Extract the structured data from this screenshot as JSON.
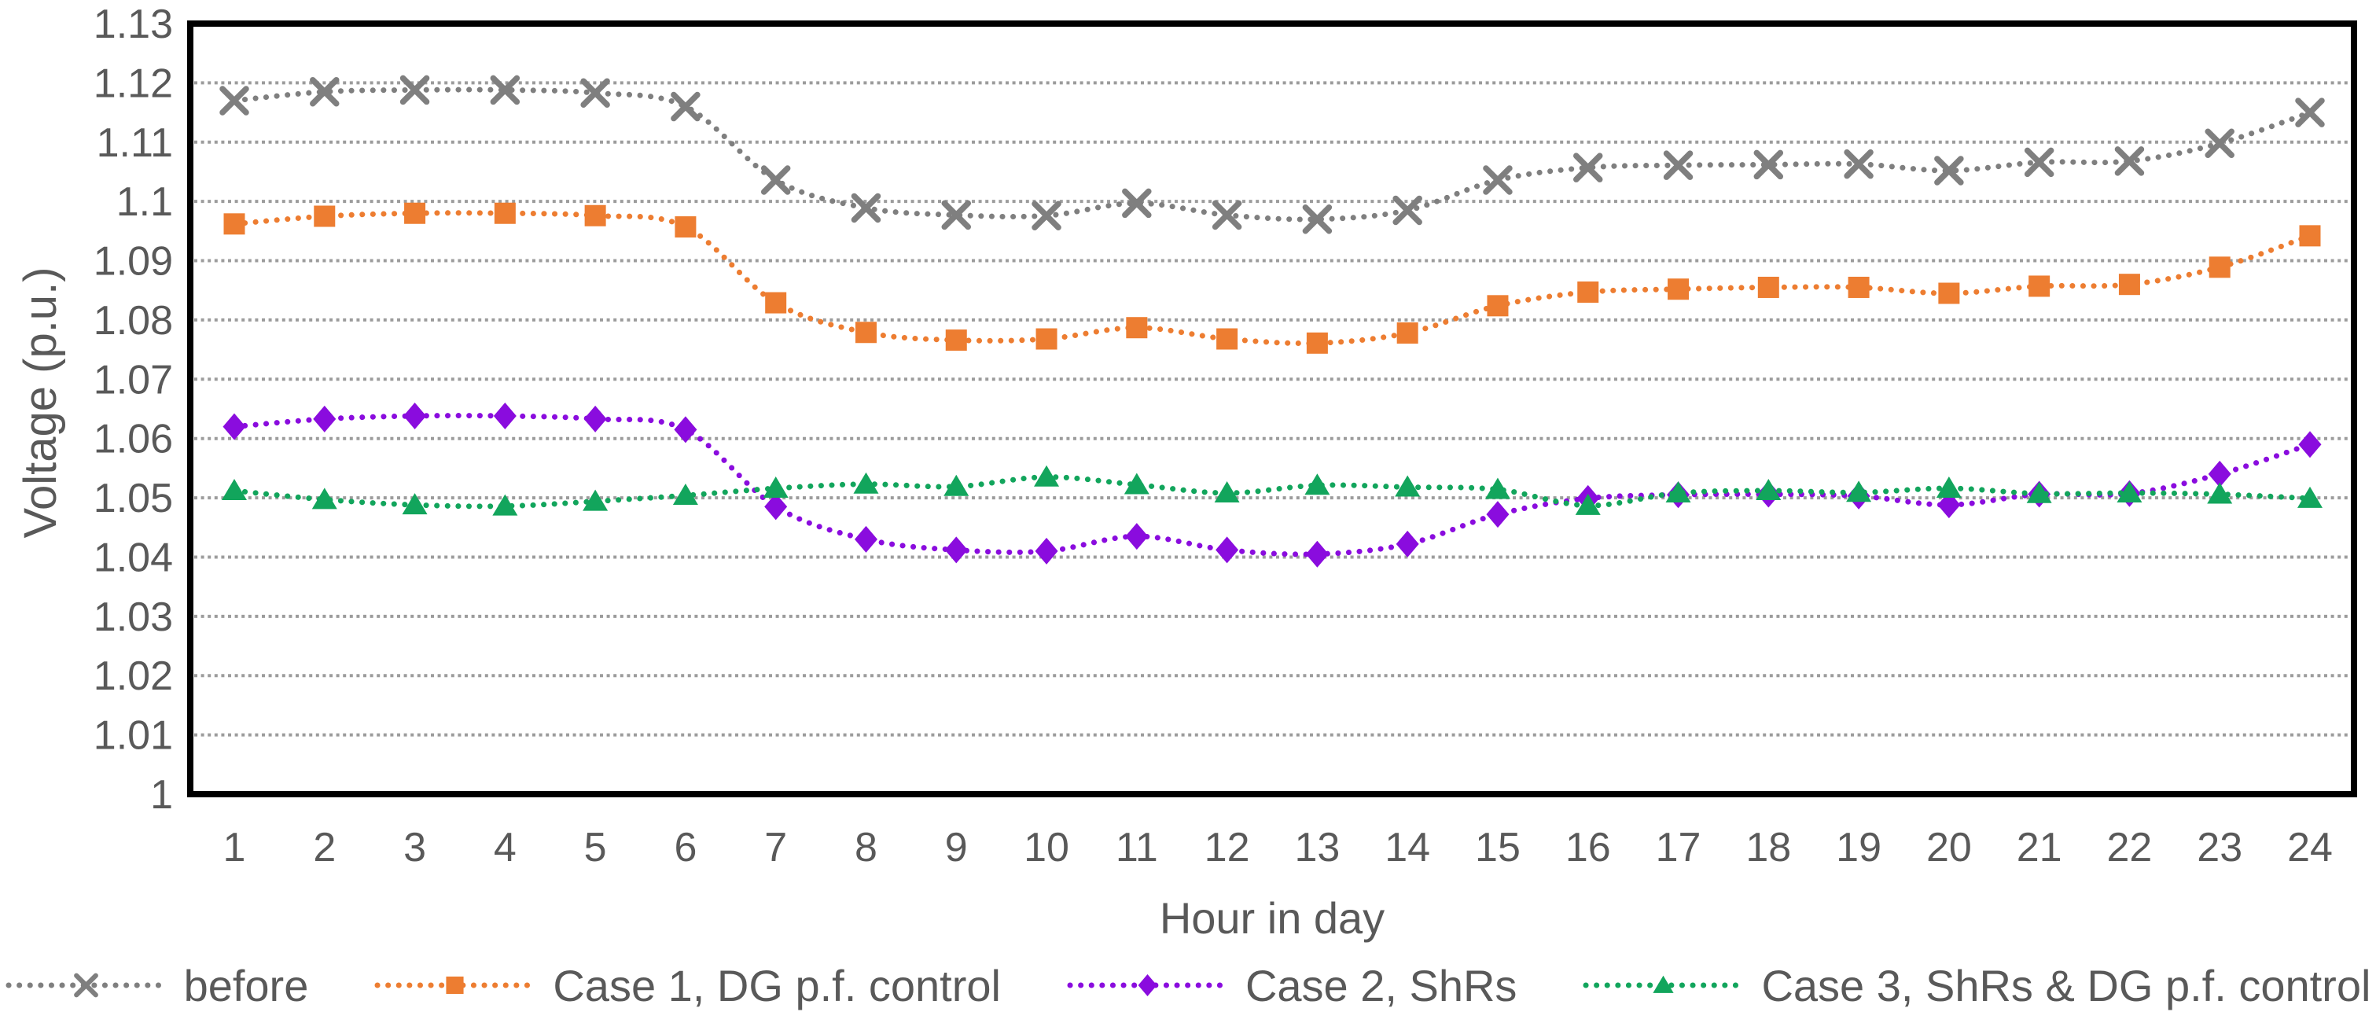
{
  "chart_data": {
    "type": "line",
    "title": "",
    "xlabel": "Hour in day",
    "ylabel": "Voltage (p.u.)",
    "x": [
      1,
      2,
      3,
      4,
      5,
      6,
      7,
      8,
      9,
      10,
      11,
      12,
      13,
      14,
      15,
      16,
      17,
      18,
      19,
      20,
      21,
      22,
      23,
      24
    ],
    "ylim": [
      1,
      1.13
    ],
    "ytick_step": 0.01,
    "ytick_labels_top_to_bottom": [
      "1.13",
      "1.12",
      "1.11",
      "1.1",
      "1.09",
      "1.08",
      "1.07",
      "1.06",
      "1.05",
      "1.04",
      "1.03",
      "1.02",
      "1.01",
      "1"
    ],
    "grid": "horizontal dotted gridlines at every 0.01",
    "legend_position": "bottom",
    "line_style": "dotted",
    "series": [
      {
        "name": "before",
        "color": "#7F7F7F",
        "marker": "x",
        "values": [
          1.117,
          1.1185,
          1.1188,
          1.1188,
          1.1183,
          1.116,
          1.1036,
          1.0989,
          1.0977,
          1.0976,
          1.0997,
          1.0977,
          1.097,
          1.0985,
          1.1036,
          1.1057,
          1.1061,
          1.1062,
          1.1063,
          1.1052,
          1.1066,
          1.1068,
          1.1098,
          1.115
        ]
      },
      {
        "name": "Case 1, DG p.f. control",
        "color": "#ED7D31",
        "marker": "square",
        "values": [
          1.0962,
          1.0975,
          1.098,
          1.098,
          1.0976,
          1.0957,
          1.0829,
          1.0779,
          1.0766,
          1.0768,
          1.0787,
          1.0768,
          1.0761,
          1.0778,
          1.0824,
          1.0847,
          1.0852,
          1.0855,
          1.0855,
          1.0845,
          1.0857,
          1.086,
          1.0889,
          1.0942
        ]
      },
      {
        "name": "Case 2, ShRs",
        "color": "#8A0CDE",
        "marker": "diamond",
        "values": [
          1.062,
          1.0633,
          1.0638,
          1.0638,
          1.0633,
          1.0615,
          1.0485,
          1.043,
          1.0412,
          1.041,
          1.0435,
          1.0412,
          1.0405,
          1.0422,
          1.0472,
          1.0499,
          1.0505,
          1.0506,
          1.0503,
          1.0488,
          1.0506,
          1.0507,
          1.054,
          1.059
        ]
      },
      {
        "name": "Case 3, ShRs & DG p.f. control",
        "color": "#12A55C",
        "marker": "triangle",
        "values": [
          1.0512,
          1.0497,
          1.0488,
          1.0486,
          1.0494,
          1.0504,
          1.0516,
          1.0523,
          1.0519,
          1.0535,
          1.0522,
          1.0508,
          1.0521,
          1.0518,
          1.0514,
          1.0487,
          1.0508,
          1.0512,
          1.0509,
          1.0516,
          1.0507,
          1.0508,
          1.0506,
          1.0499
        ]
      }
    ],
    "colors": {
      "axis_text": "#595959",
      "gridline": "#9C9C9C",
      "plot_border": "#000000",
      "background": "#FFFFFF"
    }
  }
}
